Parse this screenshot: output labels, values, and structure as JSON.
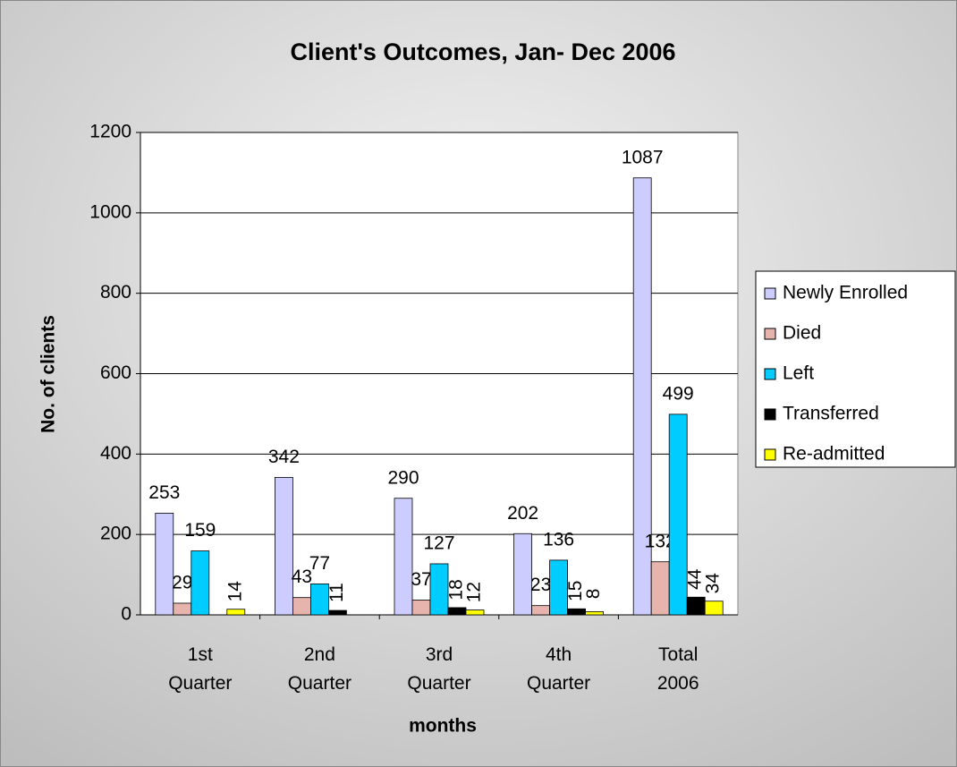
{
  "chart_data": {
    "type": "bar",
    "title": "Client's Outcomes, Jan- Dec 2006",
    "x_label": "months",
    "y_label": "No. of clients",
    "categories": [
      "1st Quarter",
      "2nd Quarter",
      "3rd Quarter",
      "4th Quarter",
      "Total 2006"
    ],
    "series": [
      {
        "name": "Newly Enrolled",
        "color": "#ccccff",
        "values": [
          253,
          342,
          290,
          202,
          1087
        ]
      },
      {
        "name": "Died",
        "color": "#e6b4ac",
        "values": [
          29,
          43,
          37,
          23,
          132
        ]
      },
      {
        "name": "Left",
        "color": "#00ccff",
        "values": [
          159,
          77,
          127,
          136,
          499
        ]
      },
      {
        "name": "Transferred",
        "color": "#000000",
        "values": [
          null,
          11,
          18,
          15,
          44
        ]
      },
      {
        "name": "Re-admitted",
        "color": "#ffff00",
        "values": [
          14,
          null,
          12,
          8,
          34
        ]
      }
    ],
    "ylim": [
      0,
      1200
    ],
    "yticks": [
      0,
      200,
      400,
      600,
      800,
      1000,
      1200
    ],
    "grid": true,
    "legend": "right"
  }
}
